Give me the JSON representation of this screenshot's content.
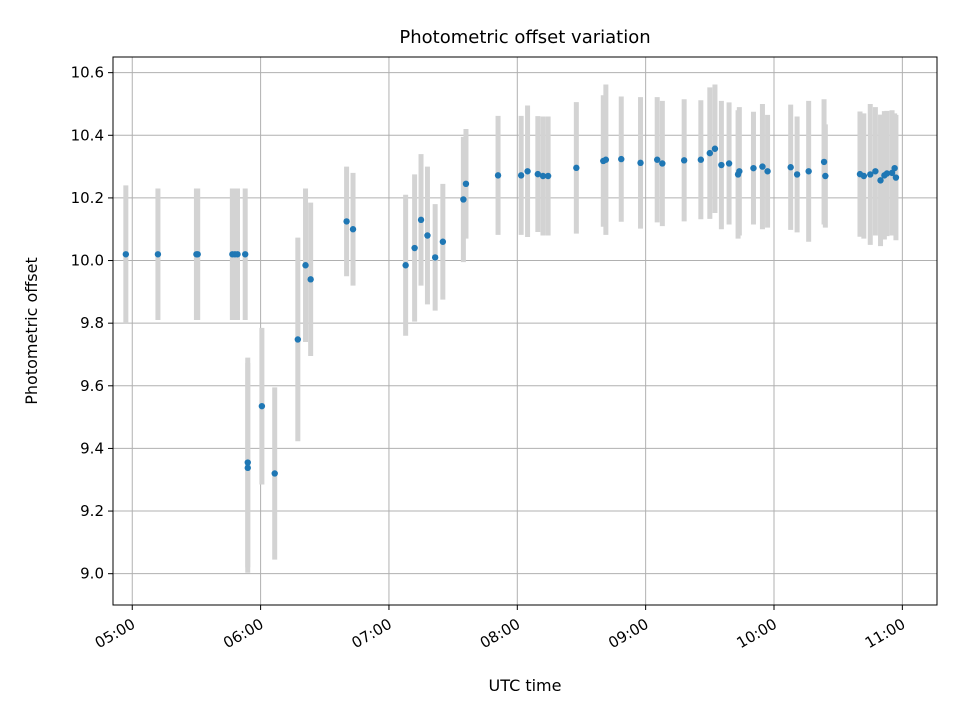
{
  "chart_data": {
    "type": "scatter",
    "title": "Photometric offset variation",
    "xlabel": "UTC time",
    "ylabel": "Photometric offset",
    "grid": true,
    "xlim": [
      4.85,
      11.27
    ],
    "ylim": [
      8.9,
      10.65
    ],
    "x_ticks": [
      {
        "value": 5,
        "label": "05:00"
      },
      {
        "value": 6,
        "label": "06:00"
      },
      {
        "value": 7,
        "label": "07:00"
      },
      {
        "value": 8,
        "label": "08:00"
      },
      {
        "value": 9,
        "label": "09:00"
      },
      {
        "value": 10,
        "label": "10:00"
      },
      {
        "value": 11,
        "label": "11:00"
      }
    ],
    "y_ticks": [
      {
        "value": 9.0,
        "label": "9.0"
      },
      {
        "value": 9.2,
        "label": "9.2"
      },
      {
        "value": 9.4,
        "label": "9.4"
      },
      {
        "value": 9.6,
        "label": "9.6"
      },
      {
        "value": 9.8,
        "label": "9.8"
      },
      {
        "value": 10.0,
        "label": "10.0"
      },
      {
        "value": 10.2,
        "label": "10.2"
      },
      {
        "value": 10.4,
        "label": "10.4"
      },
      {
        "value": 10.6,
        "label": "10.6"
      }
    ],
    "point_color": "#1f77b4",
    "errorbar_color": "#d3d3d3",
    "series": [
      {
        "name": "offset",
        "x": [
          4.95,
          5.2,
          5.5,
          5.51,
          5.78,
          5.8,
          5.82,
          5.88,
          5.9,
          5.9,
          6.01,
          6.11,
          6.29,
          6.35,
          6.39,
          6.67,
          6.72,
          7.13,
          7.2,
          7.25,
          7.3,
          7.36,
          7.42,
          7.58,
          7.6,
          7.85,
          8.03,
          8.08,
          8.16,
          8.2,
          8.24,
          8.46,
          8.67,
          8.69,
          8.81,
          8.96,
          9.09,
          9.13,
          9.3,
          9.43,
          9.5,
          9.54,
          9.59,
          9.65,
          9.72,
          9.73,
          9.84,
          9.91,
          9.95,
          10.13,
          10.18,
          10.27,
          10.39,
          10.4,
          10.67,
          10.7,
          10.75,
          10.79,
          10.83,
          10.86,
          10.88,
          10.92,
          10.94,
          10.95
        ],
        "y": [
          10.02,
          10.02,
          10.02,
          10.02,
          10.02,
          10.02,
          10.02,
          10.02,
          9.355,
          9.338,
          9.535,
          9.32,
          9.748,
          9.985,
          9.94,
          10.125,
          10.1,
          9.985,
          10.04,
          10.13,
          10.08,
          10.01,
          10.06,
          10.195,
          10.245,
          10.272,
          10.272,
          10.285,
          10.276,
          10.27,
          10.27,
          10.296,
          10.318,
          10.322,
          10.324,
          10.312,
          10.322,
          10.31,
          10.32,
          10.322,
          10.343,
          10.357,
          10.305,
          10.31,
          10.275,
          10.285,
          10.295,
          10.3,
          10.285,
          10.298,
          10.275,
          10.285,
          10.315,
          10.27,
          10.276,
          10.27,
          10.275,
          10.285,
          10.256,
          10.272,
          10.278,
          10.28,
          10.295,
          10.265
        ],
        "yerr": [
          0.22,
          0.21,
          0.21,
          0.21,
          0.21,
          0.21,
          0.21,
          0.21,
          0.335,
          0.335,
          0.25,
          0.275,
          0.325,
          0.245,
          0.245,
          0.175,
          0.18,
          0.225,
          0.235,
          0.21,
          0.22,
          0.17,
          0.185,
          0.2,
          0.175,
          0.19,
          0.19,
          0.21,
          0.185,
          0.19,
          0.19,
          0.21,
          0.21,
          0.24,
          0.2,
          0.21,
          0.2,
          0.2,
          0.195,
          0.19,
          0.21,
          0.205,
          0.205,
          0.195,
          0.205,
          0.205,
          0.18,
          0.2,
          0.18,
          0.2,
          0.185,
          0.225,
          0.2,
          0.165,
          0.2,
          0.2,
          0.225,
          0.205,
          0.21,
          0.205,
          0.2,
          0.2,
          0.175,
          0.2
        ]
      }
    ]
  }
}
